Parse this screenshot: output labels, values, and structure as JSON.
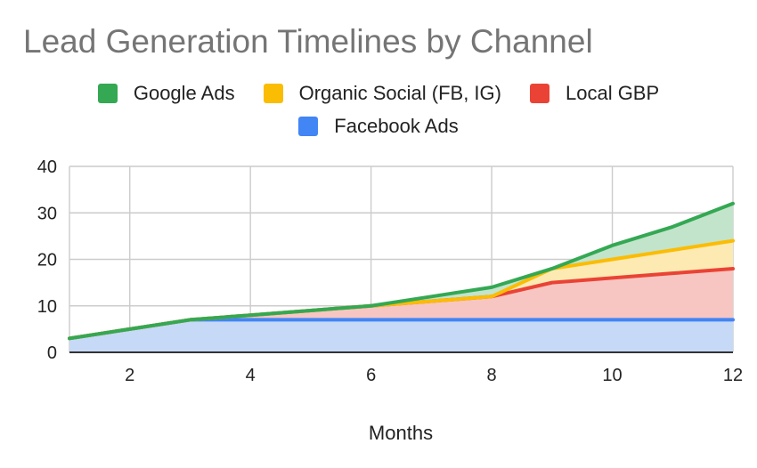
{
  "chart_data": {
    "type": "area",
    "stacked": true,
    "title": "Lead Generation Timelines by Channel",
    "xlabel": "Months",
    "ylabel": "",
    "x": [
      1,
      2,
      3,
      4,
      5,
      6,
      7,
      8,
      9,
      10,
      11,
      12
    ],
    "xlim": [
      1,
      12
    ],
    "ylim": [
      0,
      40
    ],
    "xticks": [
      2,
      4,
      6,
      8,
      10,
      12
    ],
    "yticks": [
      0,
      10,
      20,
      30,
      40
    ],
    "grid": true,
    "legend_position": "top",
    "legend": [
      {
        "name": "Google Ads",
        "color": "#34a853"
      },
      {
        "name": "Organic Social (FB, IG)",
        "color": "#fbbc04"
      },
      {
        "name": "Local GBP",
        "color": "#ea4335"
      },
      {
        "name": "Facebook Ads",
        "color": "#4285f4"
      }
    ],
    "series": [
      {
        "name": "Facebook Ads",
        "color": "#4285f4",
        "fill": "#c6d9f7",
        "values": [
          3,
          5,
          7,
          7,
          7,
          7,
          7,
          7,
          7,
          7,
          7,
          7
        ]
      },
      {
        "name": "Local GBP",
        "color": "#ea4335",
        "fill": "#f7c6c2",
        "values": [
          0,
          0,
          0,
          1,
          2,
          3,
          4,
          5,
          8,
          9,
          10,
          11
        ]
      },
      {
        "name": "Organic Social (FB, IG)",
        "color": "#fbbc04",
        "fill": "#fdeab3",
        "values": [
          0,
          0,
          0,
          0,
          0,
          0,
          0,
          0,
          3,
          4,
          5,
          6
        ]
      },
      {
        "name": "Google Ads",
        "color": "#34a853",
        "fill": "#c2e4cb",
        "values": [
          0,
          0,
          0,
          0,
          0,
          0,
          1,
          2,
          0,
          3,
          5,
          8
        ]
      }
    ]
  }
}
